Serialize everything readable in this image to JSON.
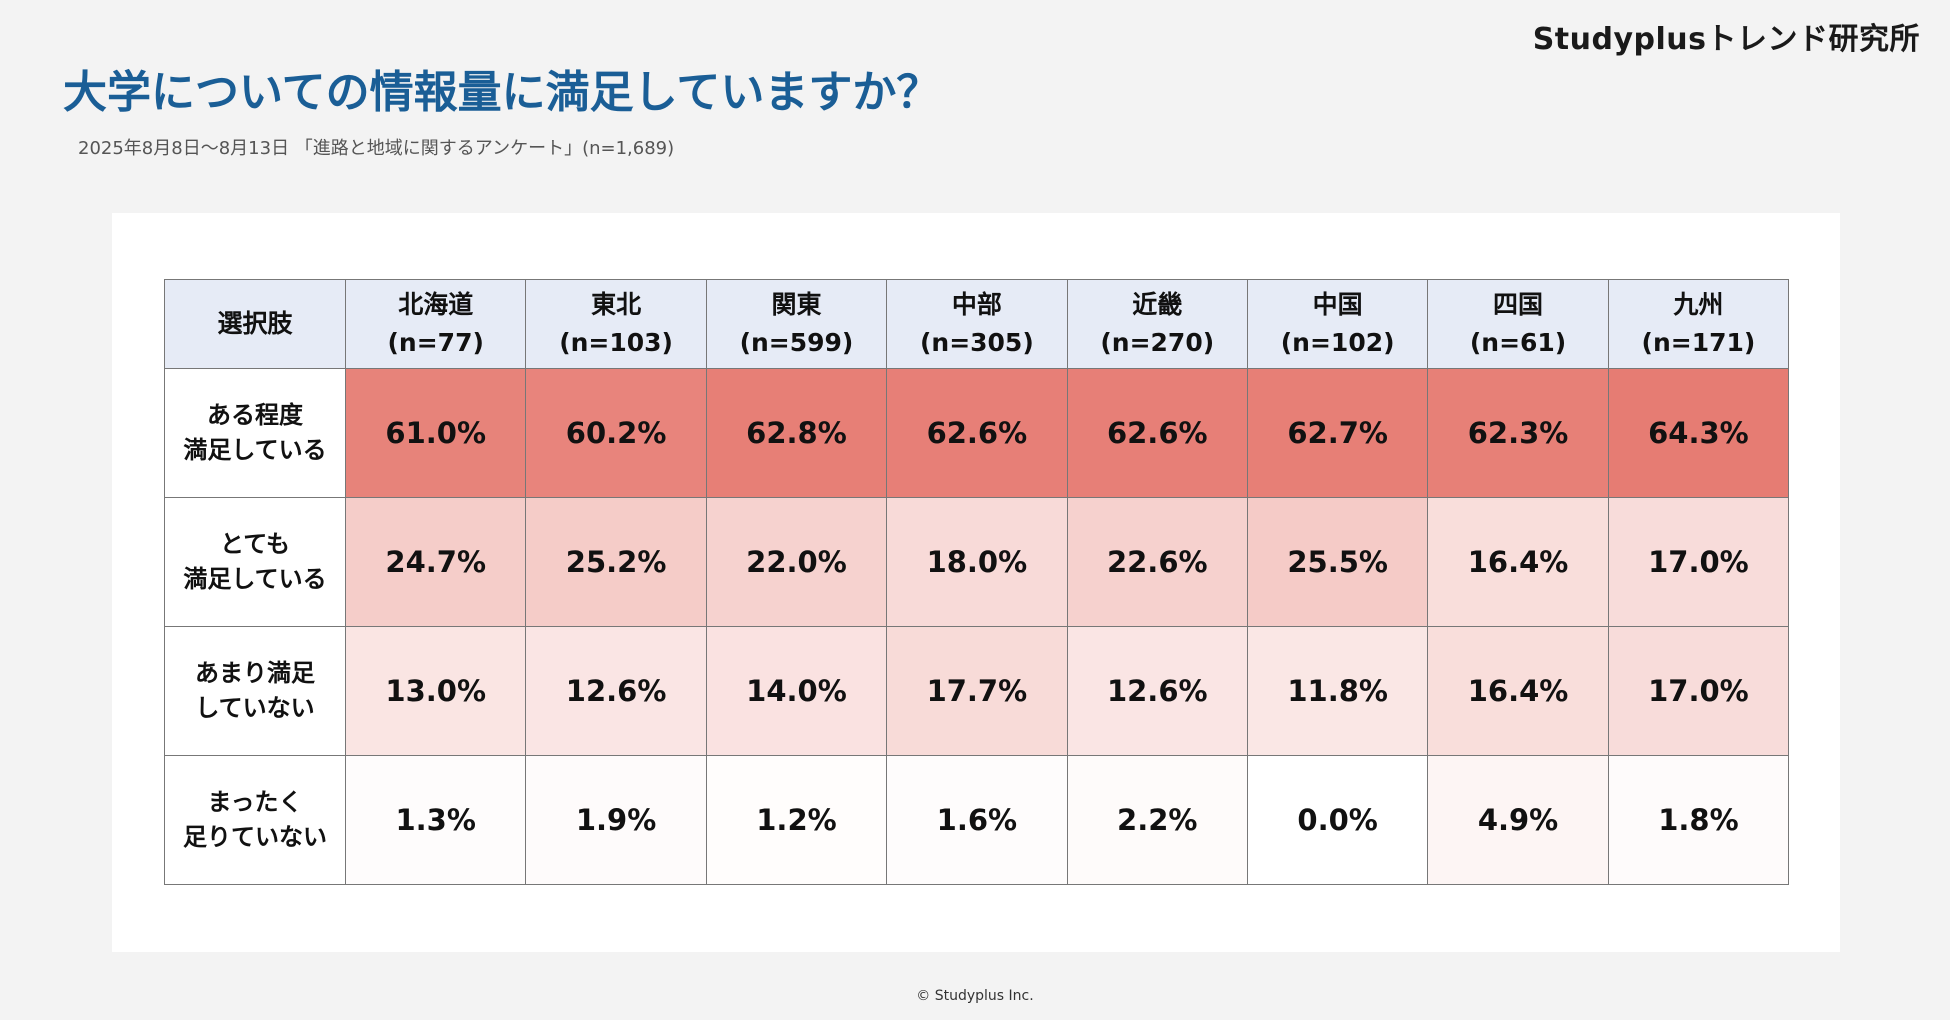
{
  "logo": "Studyplusトレンド研究所",
  "title": "大学についての情報量に満足していますか？",
  "subtitle": "2025年8月8日～8月13日 「進路と地域に関するアンケート」(n=1,689)",
  "footer": "© Studyplus Inc.",
  "chart_data": {
    "type": "heatmap",
    "title": "大学についての情報量に満足していますか？",
    "corner_header": "選択肢",
    "columns": [
      {
        "region": "北海道",
        "n": "(n=77)"
      },
      {
        "region": "東北",
        "n": "(n=103)"
      },
      {
        "region": "関東",
        "n": "(n=599)"
      },
      {
        "region": "中部",
        "n": "(n=305)"
      },
      {
        "region": "近畿",
        "n": "(n=270)"
      },
      {
        "region": "中国",
        "n": "(n=102)"
      },
      {
        "region": "四国",
        "n": "(n=61)"
      },
      {
        "region": "九州",
        "n": "(n=171)"
      }
    ],
    "rows": [
      {
        "label": [
          "ある程度",
          "満足している"
        ],
        "values": [
          61.0,
          60.2,
          62.8,
          62.6,
          62.6,
          62.7,
          62.3,
          64.3
        ]
      },
      {
        "label": [
          "とても",
          "満足している"
        ],
        "values": [
          24.7,
          25.2,
          22.0,
          18.0,
          22.6,
          25.5,
          16.4,
          17.0
        ]
      },
      {
        "label": [
          "あまり満足",
          "していない"
        ],
        "values": [
          13.0,
          12.6,
          14.0,
          17.7,
          12.6,
          11.8,
          16.4,
          17.0
        ]
      },
      {
        "label": [
          "まったく",
          "足りていない"
        ],
        "values": [
          1.3,
          1.9,
          1.2,
          1.6,
          2.2,
          0.0,
          4.9,
          1.8
        ]
      }
    ],
    "unit": "%",
    "color_scale": {
      "low": "#ffffff",
      "high": "#e67c73"
    }
  }
}
